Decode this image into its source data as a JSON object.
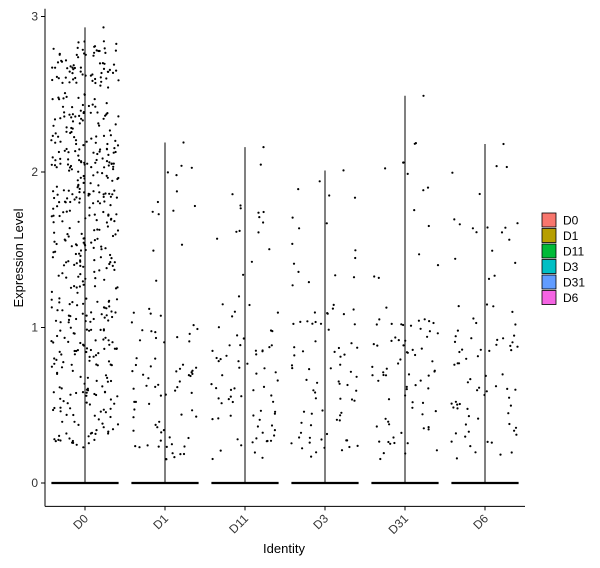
{
  "chart_data": {
    "type": "violin",
    "xlabel": "Identity",
    "ylabel": "Expression Level",
    "categories": [
      "D0",
      "D1",
      "D11",
      "D3",
      "D31",
      "D6"
    ],
    "ylim": [
      -0.15,
      3.05
    ],
    "y_ticks": [
      0,
      1,
      2,
      3
    ],
    "colors": [
      "#F8766D",
      "#B79F00",
      "#00BA38",
      "#00BFC4",
      "#619CFF",
      "#F564E3"
    ],
    "series": [
      {
        "name": "D0",
        "max": 2.93
      },
      {
        "name": "D1",
        "max": 2.19
      },
      {
        "name": "D11",
        "max": 2.16
      },
      {
        "name": "D3",
        "max": 2.01
      },
      {
        "name": "D31",
        "max": 2.49
      },
      {
        "name": "D6",
        "max": 2.18
      }
    ],
    "legend": {
      "position": "right",
      "entries": [
        "D0",
        "D1",
        "D11",
        "D3",
        "D31",
        "D6"
      ]
    },
    "grid": false,
    "points_shown": true
  }
}
